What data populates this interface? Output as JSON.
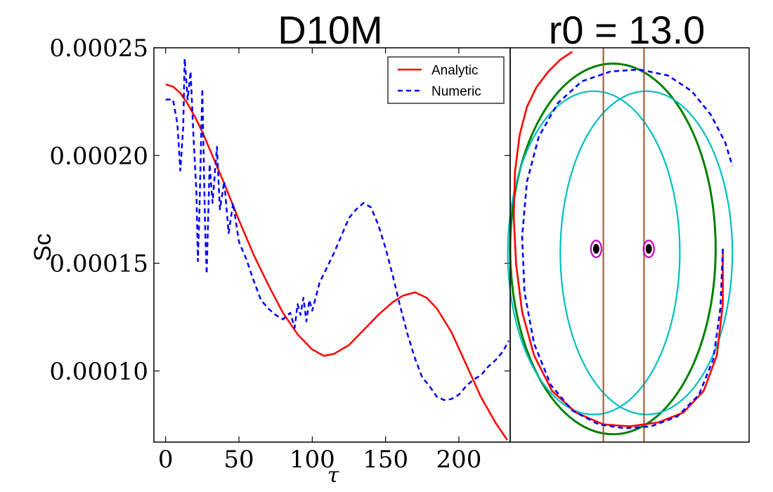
{
  "chart_data": [
    {
      "type": "line",
      "title": "D10M",
      "xlabel": "τ",
      "ylabel": "Sc",
      "xlim": [
        -8,
        235
      ],
      "ylim": [
        6.7e-05,
        0.00025
      ],
      "xticks": [
        0,
        50,
        100,
        150,
        200
      ],
      "xtick_labels": [
        "0",
        "50",
        "100",
        "150",
        "200"
      ],
      "yticks": [
        0.0001,
        0.00015,
        0.0002,
        0.00025
      ],
      "ytick_labels": [
        "0.00010",
        "0.00015",
        "0.00020",
        "0.00025"
      ],
      "grid": false,
      "legend": "top-right",
      "series": [
        {
          "name": "Analytic",
          "color": "#ff0000",
          "style": "solid",
          "x": [
            0,
            5,
            10,
            15,
            20,
            25,
            30,
            40,
            50,
            60,
            70,
            80,
            90,
            100,
            108,
            115,
            125,
            135,
            145,
            155,
            162,
            170,
            178,
            185,
            195,
            205,
            215,
            225,
            233
          ],
          "y": [
            0.000233,
            0.000232,
            0.000229,
            0.000224,
            0.000218,
            0.000211,
            0.000203,
            0.000187,
            0.00017,
            0.000154,
            0.00014,
            0.000127,
            0.000117,
            0.00011,
            0.000107,
            0.000108,
            0.000112,
            0.000119,
            0.000126,
            0.000132,
            0.000135,
            0.0001365,
            0.000134,
            0.000129,
            0.000118,
            0.000103,
            8.8e-05,
            7.6e-05,
            6.8e-05
          ]
        },
        {
          "name": "Numeric",
          "color": "#0000ff",
          "style": "dashed",
          "x": [
            0,
            5,
            8,
            10,
            12,
            13,
            15,
            17,
            19,
            21,
            22,
            23,
            25,
            27,
            28,
            30,
            32,
            35,
            37,
            40,
            43,
            46,
            50,
            55,
            60,
            65,
            70,
            75,
            80,
            85,
            88,
            90,
            92,
            94,
            96,
            98,
            100,
            105,
            110,
            115,
            120,
            125,
            130,
            135,
            140,
            145,
            150,
            155,
            160,
            165,
            170,
            175,
            180,
            185,
            190,
            195,
            200,
            205,
            210,
            215,
            220,
            225,
            230,
            234
          ],
          "y": [
            0.000226,
            0.000226,
            0.000215,
            0.000193,
            0.000213,
            0.000245,
            0.000226,
            0.000239,
            0.000209,
            0.000183,
            0.000151,
            0.000173,
            0.000231,
            0.000165,
            0.000145,
            0.000196,
            0.000178,
            0.000204,
            0.000175,
            0.000188,
            0.000164,
            0.000178,
            0.00016,
            0.000152,
            0.000142,
            0.000133,
            0.000129,
            0.000126,
            0.000124,
            0.000127,
            0.00012,
            0.000131,
            0.000126,
            0.000134,
            0.000123,
            0.000133,
            0.000128,
            0.000141,
            0.000148,
            0.000155,
            0.000163,
            0.000171,
            0.000175,
            0.000178,
            0.000176,
            0.000168,
            0.000157,
            0.000144,
            0.00013,
            0.000117,
            0.000106,
            9.7e-05,
            9.3e-05,
            8.8e-05,
            8.65e-05,
            8.7e-05,
            8.9e-05,
            9.3e-05,
            9.6e-05,
            9.8e-05,
            0.000102,
            0.000105,
            0.000109,
            0.000114
          ]
        }
      ]
    },
    {
      "type": "line",
      "title": "r0 = 13.0",
      "xlabel": "",
      "ylabel": "",
      "xlim": [
        -1,
        1
      ],
      "ylim": [
        -1,
        1
      ],
      "grid": false,
      "description_axes": "no ticks",
      "series": [
        {
          "name": "outer-orbit",
          "color": "#008000",
          "style": "solid",
          "shape": "ellipse",
          "cx": -0.14,
          "cy": -0.02,
          "rx": 0.86,
          "ry": 0.94
        },
        {
          "name": "inner-ellipse-left",
          "color": "#00bfbf",
          "style": "solid",
          "shape": "ellipse",
          "cx": -0.3,
          "cy": -0.04,
          "rx": 0.72,
          "ry": 0.82
        },
        {
          "name": "inner-ellipse-right",
          "color": "#00bfbf",
          "style": "solid",
          "shape": "ellipse",
          "cx": 0.14,
          "cy": -0.04,
          "rx": 0.72,
          "ry": 0.82
        },
        {
          "name": "boundary-left",
          "color": "#a0522d",
          "style": "solid",
          "shape": "vline",
          "x": -0.22
        },
        {
          "name": "boundary-right",
          "color": "#a0522d",
          "style": "solid",
          "shape": "vline",
          "x": 0.12
        },
        {
          "name": "black-hole-left",
          "color": "#000000",
          "shape": "dot",
          "cx": -0.28,
          "cy": -0.02
        },
        {
          "name": "black-hole-right",
          "color": "#000000",
          "shape": "dot",
          "cx": 0.16,
          "cy": -0.02
        },
        {
          "name": "horizon-left",
          "color": "#bf00bf",
          "shape": "ring",
          "cx": -0.28,
          "cy": -0.02
        },
        {
          "name": "horizon-right",
          "color": "#bf00bf",
          "shape": "ring",
          "cx": 0.16,
          "cy": -0.02
        },
        {
          "name": "Analytic",
          "color": "#ff0000",
          "style": "solid",
          "x": [
            0.78,
            0.78,
            0.73,
            0.62,
            0.45,
            0.24,
            0.0,
            -0.22,
            -0.45,
            -0.65,
            -0.8,
            -0.9,
            -0.95,
            -0.97,
            -0.96,
            -0.92,
            -0.86,
            -0.78,
            -0.68,
            -0.58,
            -0.48
          ],
          "y": [
            -0.02,
            -0.3,
            -0.56,
            -0.74,
            -0.85,
            -0.9,
            -0.92,
            -0.91,
            -0.85,
            -0.74,
            -0.56,
            -0.34,
            -0.1,
            0.14,
            0.37,
            0.56,
            0.7,
            0.8,
            0.88,
            0.94,
            0.98
          ]
        },
        {
          "name": "Numeric",
          "color": "#0000ff",
          "style": "dashed",
          "x": [
            0.78,
            0.76,
            0.7,
            0.58,
            0.4,
            0.18,
            -0.04,
            -0.26,
            -0.48,
            -0.66,
            -0.8,
            -0.88,
            -0.9,
            -0.86,
            -0.76,
            -0.6,
            -0.4,
            -0.16,
            0.08,
            0.32,
            0.52,
            0.68,
            0.8,
            0.86
          ],
          "y": [
            -0.02,
            -0.32,
            -0.58,
            -0.76,
            -0.87,
            -0.92,
            -0.93,
            -0.91,
            -0.84,
            -0.71,
            -0.5,
            -0.24,
            0.04,
            0.32,
            0.55,
            0.72,
            0.83,
            0.88,
            0.89,
            0.86,
            0.78,
            0.66,
            0.52,
            0.4
          ]
        }
      ]
    }
  ],
  "legend": {
    "entries": [
      {
        "label": "Analytic",
        "color": "#ff0000",
        "style": "solid"
      },
      {
        "label": "Numeric",
        "color": "#0000ff",
        "style": "dashed"
      }
    ]
  }
}
